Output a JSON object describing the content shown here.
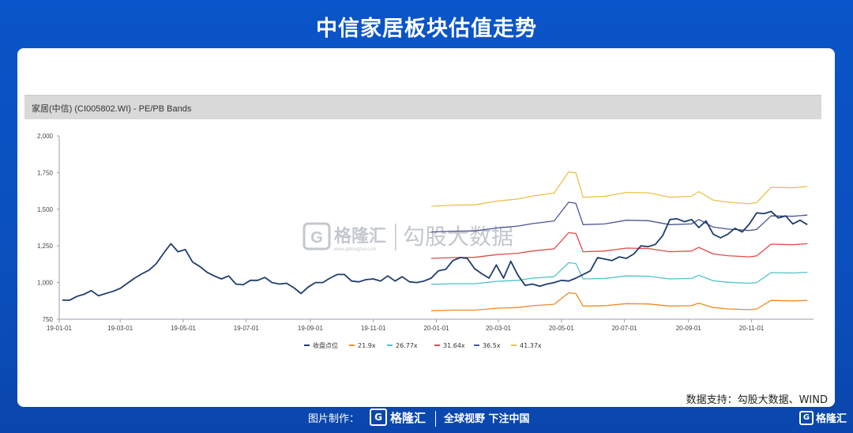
{
  "page": {
    "title": "中信家居板块估值走势",
    "credit": "数据支持：勾股大数据、WIND",
    "footer": {
      "made_by": "图片制作：",
      "logo_mark": "G",
      "logo_text": "格隆汇",
      "slogan": "全球视野 下注中国"
    },
    "corner_logo_text": "格隆汇"
  },
  "watermark": {
    "brand": "格隆汇",
    "url": "www.gelonghui.com",
    "product": "勾股大数据"
  },
  "colors": {
    "close": "#1f3d6e",
    "band_21_9": "#f08a24",
    "band_26_77": "#4fc3c9",
    "band_31_64": "#e04a4a",
    "band_36_5": "#4a5590",
    "band_41_37": "#e9c24a"
  },
  "chart_data": {
    "type": "line",
    "title": "家居(中信) (CI005802.WI) - PE/PB Bands",
    "xlabel": "",
    "ylabel": "",
    "ylim": [
      750,
      2000
    ],
    "yticks": [
      750,
      1000,
      1250,
      1500,
      1750,
      2000
    ],
    "ytick_labels": [
      "750",
      "1,000",
      "1,250",
      "1,500",
      "1,750",
      "2,000"
    ],
    "xlim": [
      "2019-01-01",
      "2020-12-31"
    ],
    "xticks": [
      "2019-01-01",
      "2019-03-01",
      "2019-05-01",
      "2019-07-01",
      "2019-09-01",
      "2019-11-01",
      "2020-01-01",
      "2020-03-01",
      "2020-05-01",
      "2020-07-01",
      "2020-09-01",
      "2020-11-01"
    ],
    "xtick_labels": [
      "19-01-01",
      "19-03-01",
      "19-05-01",
      "19-07-01",
      "19-09-01",
      "19-11-01",
      "20-01-01",
      "20-03-01",
      "20-05-01",
      "20-07-01",
      "20-09-01",
      "20-11-01"
    ],
    "grid": false,
    "legend_position": "bottom",
    "series": [
      {
        "name": "收盘点位",
        "color_key": "close",
        "points": [
          [
            "2019-01-04",
            880
          ],
          [
            "2019-01-11",
            880
          ],
          [
            "2019-01-18",
            905
          ],
          [
            "2019-01-25",
            920
          ],
          [
            "2019-02-01",
            945
          ],
          [
            "2019-02-08",
            910
          ],
          [
            "2019-02-22",
            940
          ],
          [
            "2019-03-01",
            960
          ],
          [
            "2019-03-08",
            995
          ],
          [
            "2019-03-15",
            1030
          ],
          [
            "2019-03-22",
            1060
          ],
          [
            "2019-03-29",
            1085
          ],
          [
            "2019-04-05",
            1130
          ],
          [
            "2019-04-12",
            1200
          ],
          [
            "2019-04-19",
            1265
          ],
          [
            "2019-04-26",
            1210
          ],
          [
            "2019-05-03",
            1225
          ],
          [
            "2019-05-10",
            1140
          ],
          [
            "2019-05-17",
            1110
          ],
          [
            "2019-05-24",
            1070
          ],
          [
            "2019-05-31",
            1045
          ],
          [
            "2019-06-07",
            1025
          ],
          [
            "2019-06-14",
            1045
          ],
          [
            "2019-06-21",
            990
          ],
          [
            "2019-06-28",
            985
          ],
          [
            "2019-07-05",
            1015
          ],
          [
            "2019-07-12",
            1015
          ],
          [
            "2019-07-19",
            1035
          ],
          [
            "2019-07-26",
            1000
          ],
          [
            "2019-08-02",
            990
          ],
          [
            "2019-08-09",
            995
          ],
          [
            "2019-08-16",
            965
          ],
          [
            "2019-08-23",
            925
          ],
          [
            "2019-08-30",
            970
          ],
          [
            "2019-09-06",
            1000
          ],
          [
            "2019-09-13",
            1000
          ],
          [
            "2019-09-20",
            1030
          ],
          [
            "2019-09-27",
            1055
          ],
          [
            "2019-10-04",
            1055
          ],
          [
            "2019-10-11",
            1010
          ],
          [
            "2019-10-18",
            1005
          ],
          [
            "2019-10-25",
            1020
          ],
          [
            "2019-11-01",
            1025
          ],
          [
            "2019-11-08",
            1010
          ],
          [
            "2019-11-15",
            1045
          ],
          [
            "2019-11-22",
            1010
          ],
          [
            "2019-11-29",
            1040
          ],
          [
            "2019-12-06",
            1005
          ],
          [
            "2019-12-13",
            1000
          ],
          [
            "2019-12-20",
            1010
          ],
          [
            "2019-12-27",
            1030
          ],
          [
            "2020-01-03",
            1080
          ],
          [
            "2020-01-10",
            1090
          ],
          [
            "2020-01-17",
            1150
          ],
          [
            "2020-01-24",
            1170
          ],
          [
            "2020-01-31",
            1165
          ],
          [
            "2020-02-07",
            1095
          ],
          [
            "2020-02-14",
            1060
          ],
          [
            "2020-02-21",
            1030
          ],
          [
            "2020-02-28",
            1120
          ],
          [
            "2020-03-06",
            1030
          ],
          [
            "2020-03-13",
            1145
          ],
          [
            "2020-03-20",
            1050
          ],
          [
            "2020-03-27",
            980
          ],
          [
            "2020-04-03",
            990
          ],
          [
            "2020-04-10",
            975
          ],
          [
            "2020-04-17",
            990
          ],
          [
            "2020-04-24",
            1000
          ],
          [
            "2020-05-01",
            1015
          ],
          [
            "2020-05-08",
            1010
          ],
          [
            "2020-05-15",
            1030
          ],
          [
            "2020-05-22",
            1055
          ],
          [
            "2020-05-29",
            1080
          ],
          [
            "2020-06-05",
            1170
          ],
          [
            "2020-06-12",
            1160
          ],
          [
            "2020-06-19",
            1150
          ],
          [
            "2020-06-26",
            1175
          ],
          [
            "2020-07-03",
            1165
          ],
          [
            "2020-07-10",
            1195
          ],
          [
            "2020-07-17",
            1250
          ],
          [
            "2020-07-24",
            1245
          ],
          [
            "2020-07-31",
            1260
          ],
          [
            "2020-08-07",
            1320
          ],
          [
            "2020-08-14",
            1430
          ],
          [
            "2020-08-21",
            1435
          ],
          [
            "2020-08-28",
            1415
          ],
          [
            "2020-09-04",
            1430
          ],
          [
            "2020-09-11",
            1375
          ],
          [
            "2020-09-18",
            1420
          ],
          [
            "2020-09-25",
            1330
          ],
          [
            "2020-10-02",
            1305
          ],
          [
            "2020-10-09",
            1330
          ],
          [
            "2020-10-16",
            1370
          ],
          [
            "2020-10-23",
            1345
          ],
          [
            "2020-10-30",
            1400
          ],
          [
            "2020-11-06",
            1475
          ],
          [
            "2020-11-13",
            1470
          ],
          [
            "2020-11-20",
            1485
          ],
          [
            "2020-11-27",
            1440
          ],
          [
            "2020-12-04",
            1455
          ],
          [
            "2020-12-11",
            1400
          ],
          [
            "2020-12-18",
            1425
          ],
          [
            "2020-12-25",
            1395
          ]
        ]
      },
      {
        "name": "21.9x",
        "color_key": "band_21_9",
        "points": [
          [
            "2019-12-27",
            808
          ],
          [
            "2020-01-17",
            812
          ],
          [
            "2020-02-07",
            812
          ],
          [
            "2020-02-28",
            825
          ],
          [
            "2020-03-20",
            830
          ],
          [
            "2020-04-03",
            842
          ],
          [
            "2020-04-24",
            852
          ],
          [
            "2020-05-08",
            930
          ],
          [
            "2020-05-15",
            925
          ],
          [
            "2020-05-22",
            840
          ],
          [
            "2020-06-12",
            842
          ],
          [
            "2020-07-03",
            856
          ],
          [
            "2020-07-24",
            854
          ],
          [
            "2020-08-14",
            840
          ],
          [
            "2020-09-04",
            842
          ],
          [
            "2020-09-11",
            860
          ],
          [
            "2020-09-25",
            830
          ],
          [
            "2020-10-09",
            820
          ],
          [
            "2020-10-30",
            815
          ],
          [
            "2020-11-06",
            820
          ],
          [
            "2020-11-20",
            878
          ],
          [
            "2020-12-11",
            875
          ],
          [
            "2020-12-25",
            878
          ]
        ]
      },
      {
        "name": "26.77x",
        "color_key": "band_26_77",
        "points": [
          [
            "2019-12-27",
            988
          ],
          [
            "2020-01-17",
            992
          ],
          [
            "2020-02-07",
            992
          ],
          [
            "2020-02-28",
            1008
          ],
          [
            "2020-03-20",
            1015
          ],
          [
            "2020-04-03",
            1030
          ],
          [
            "2020-04-24",
            1040
          ],
          [
            "2020-05-08",
            1135
          ],
          [
            "2020-05-15",
            1130
          ],
          [
            "2020-05-22",
            1025
          ],
          [
            "2020-06-12",
            1028
          ],
          [
            "2020-07-03",
            1045
          ],
          [
            "2020-07-24",
            1043
          ],
          [
            "2020-08-14",
            1025
          ],
          [
            "2020-09-04",
            1028
          ],
          [
            "2020-09-11",
            1050
          ],
          [
            "2020-09-25",
            1012
          ],
          [
            "2020-10-09",
            1002
          ],
          [
            "2020-10-30",
            995
          ],
          [
            "2020-11-06",
            1000
          ],
          [
            "2020-11-20",
            1068
          ],
          [
            "2020-12-11",
            1065
          ],
          [
            "2020-12-25",
            1070
          ]
        ]
      },
      {
        "name": "31.64x",
        "color_key": "band_31_64",
        "points": [
          [
            "2019-12-27",
            1165
          ],
          [
            "2020-01-17",
            1170
          ],
          [
            "2020-02-07",
            1172
          ],
          [
            "2020-02-28",
            1190
          ],
          [
            "2020-03-20",
            1200
          ],
          [
            "2020-04-03",
            1215
          ],
          [
            "2020-04-24",
            1230
          ],
          [
            "2020-05-08",
            1340
          ],
          [
            "2020-05-15",
            1335
          ],
          [
            "2020-05-22",
            1210
          ],
          [
            "2020-06-12",
            1215
          ],
          [
            "2020-07-03",
            1235
          ],
          [
            "2020-07-24",
            1232
          ],
          [
            "2020-08-14",
            1210
          ],
          [
            "2020-09-04",
            1215
          ],
          [
            "2020-09-11",
            1240
          ],
          [
            "2020-09-25",
            1195
          ],
          [
            "2020-10-09",
            1183
          ],
          [
            "2020-10-30",
            1175
          ],
          [
            "2020-11-06",
            1182
          ],
          [
            "2020-11-20",
            1262
          ],
          [
            "2020-12-11",
            1258
          ],
          [
            "2020-12-25",
            1265
          ]
        ]
      },
      {
        "name": "36.5x",
        "color_key": "band_36_5",
        "points": [
          [
            "2019-12-27",
            1345
          ],
          [
            "2020-01-17",
            1350
          ],
          [
            "2020-02-07",
            1352
          ],
          [
            "2020-02-28",
            1372
          ],
          [
            "2020-03-20",
            1385
          ],
          [
            "2020-04-03",
            1402
          ],
          [
            "2020-04-24",
            1420
          ],
          [
            "2020-05-08",
            1548
          ],
          [
            "2020-05-15",
            1540
          ],
          [
            "2020-05-22",
            1395
          ],
          [
            "2020-06-12",
            1400
          ],
          [
            "2020-07-03",
            1425
          ],
          [
            "2020-07-24",
            1422
          ],
          [
            "2020-08-14",
            1395
          ],
          [
            "2020-09-04",
            1400
          ],
          [
            "2020-09-11",
            1430
          ],
          [
            "2020-09-25",
            1378
          ],
          [
            "2020-10-09",
            1365
          ],
          [
            "2020-10-30",
            1355
          ],
          [
            "2020-11-06",
            1362
          ],
          [
            "2020-11-20",
            1455
          ],
          [
            "2020-12-11",
            1452
          ],
          [
            "2020-12-25",
            1460
          ]
        ]
      },
      {
        "name": "41.37x",
        "color_key": "band_41_37",
        "points": [
          [
            "2019-12-27",
            1520
          ],
          [
            "2020-01-17",
            1528
          ],
          [
            "2020-02-07",
            1530
          ],
          [
            "2020-02-28",
            1555
          ],
          [
            "2020-03-20",
            1570
          ],
          [
            "2020-04-03",
            1590
          ],
          [
            "2020-04-24",
            1610
          ],
          [
            "2020-05-08",
            1755
          ],
          [
            "2020-05-15",
            1748
          ],
          [
            "2020-05-22",
            1582
          ],
          [
            "2020-06-12",
            1588
          ],
          [
            "2020-07-03",
            1615
          ],
          [
            "2020-07-24",
            1612
          ],
          [
            "2020-08-14",
            1582
          ],
          [
            "2020-09-04",
            1588
          ],
          [
            "2020-09-11",
            1620
          ],
          [
            "2020-09-25",
            1562
          ],
          [
            "2020-10-09",
            1548
          ],
          [
            "2020-10-30",
            1537
          ],
          [
            "2020-11-06",
            1545
          ],
          [
            "2020-11-20",
            1650
          ],
          [
            "2020-12-11",
            1646
          ],
          [
            "2020-12-25",
            1655
          ]
        ]
      }
    ]
  }
}
